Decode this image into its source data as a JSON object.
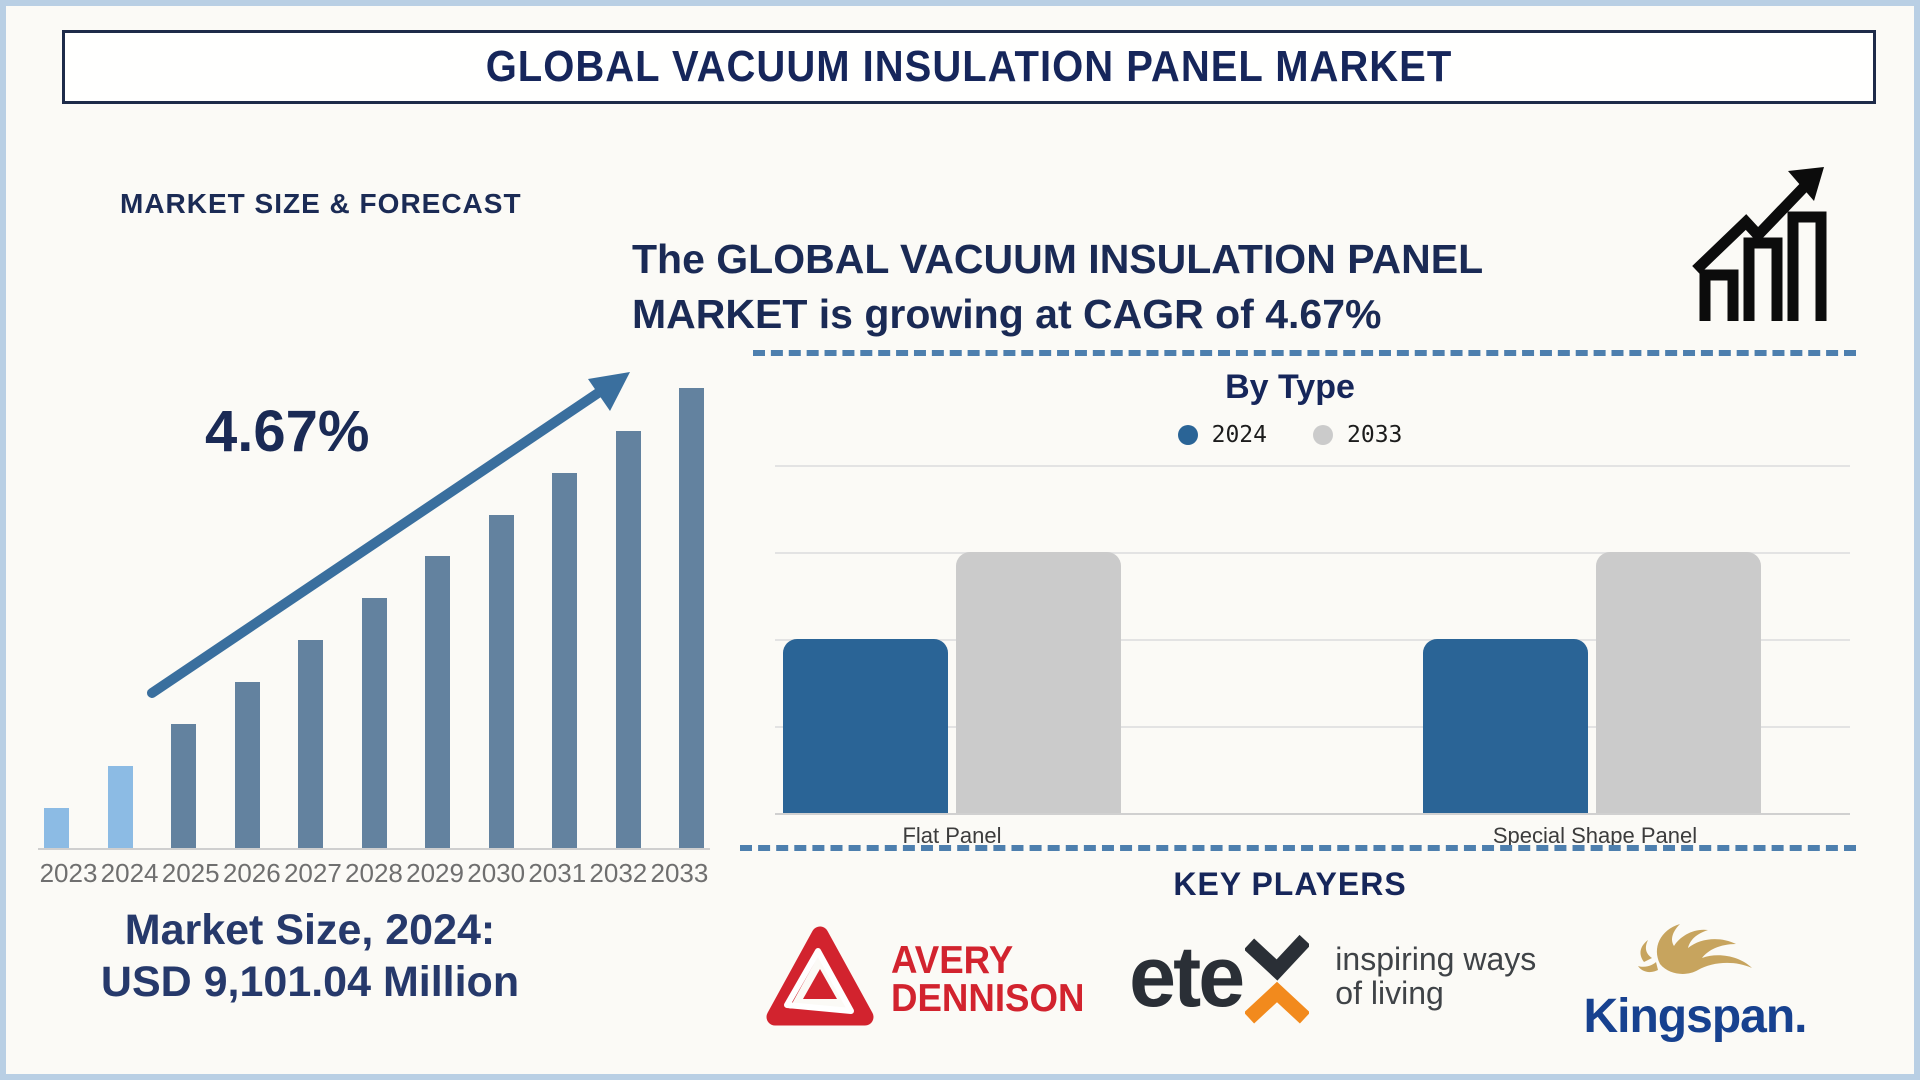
{
  "header": {
    "title": "GLOBAL VACUUM INSULATION PANEL MARKET"
  },
  "left_section": {
    "heading": "MARKET SIZE & FORECAST",
    "cagr_annotation": "4.67%",
    "market_size_line1": "Market Size, 2024:",
    "market_size_line2": "USD 9,101.04 Million"
  },
  "right_section": {
    "growth_statement": "The GLOBAL VACUUM INSULATION PANEL MARKET is growing at CAGR of 4.67%",
    "by_type_title": "By Type",
    "key_players_title": "KEY PLAYERS"
  },
  "key_players": {
    "avery_dennison": {
      "line1": "AVERY",
      "line2": "DENNISON",
      "brand_color": "#d2232e"
    },
    "etex": {
      "wordmark": "ete",
      "tagline_line1": "inspiring ways",
      "tagline_line2": "of living",
      "dark_color": "#2a2f36",
      "orange_color": "#f28a1d",
      "tagline_color": "#3f4347"
    },
    "kingspan": {
      "wordmark": "Kingspan.",
      "brand_color": "#17418f",
      "lion_color": "#c7a45e"
    }
  },
  "colors": {
    "navy_text": "#1b2b55",
    "frame_border": "#b9cfe4",
    "dashed_divider": "#4d7fae",
    "trend_arrow": "#3a6f9e"
  },
  "chart_data": [
    {
      "type": "bar",
      "title": "MARKET SIZE & FORECAST",
      "categories": [
        "2023",
        "2024",
        "2025",
        "2026",
        "2027",
        "2028",
        "2029",
        "2030",
        "2031",
        "2032",
        "2033"
      ],
      "values_relative_pct": [
        8.7,
        17.8,
        27.0,
        36.1,
        45.2,
        54.3,
        63.5,
        72.4,
        81.5,
        90.7,
        100
      ],
      "known_point": {
        "year": "2024",
        "value": "USD 9,101.04 Million"
      },
      "cagr": "4.67%",
      "bar_color_default": "#63829f",
      "bar_color_highlight": "#8cbbe4",
      "highlight_years": [
        "2023",
        "2024"
      ],
      "yaxis_labels": "none",
      "grid": false
    },
    {
      "type": "bar",
      "title": "By Type",
      "categories": [
        "Flat Panel",
        "Special Shape Panel"
      ],
      "series": [
        {
          "name": "2024",
          "color": "#2a6496",
          "values_relative_pct": [
            50,
            50
          ]
        },
        {
          "name": "2033",
          "color": "#cbcbcb",
          "values_relative_pct": [
            75,
            75
          ]
        }
      ],
      "legend_position": "top-center",
      "grid": true,
      "gridline_count": 5,
      "yaxis_labels": "none"
    }
  ]
}
